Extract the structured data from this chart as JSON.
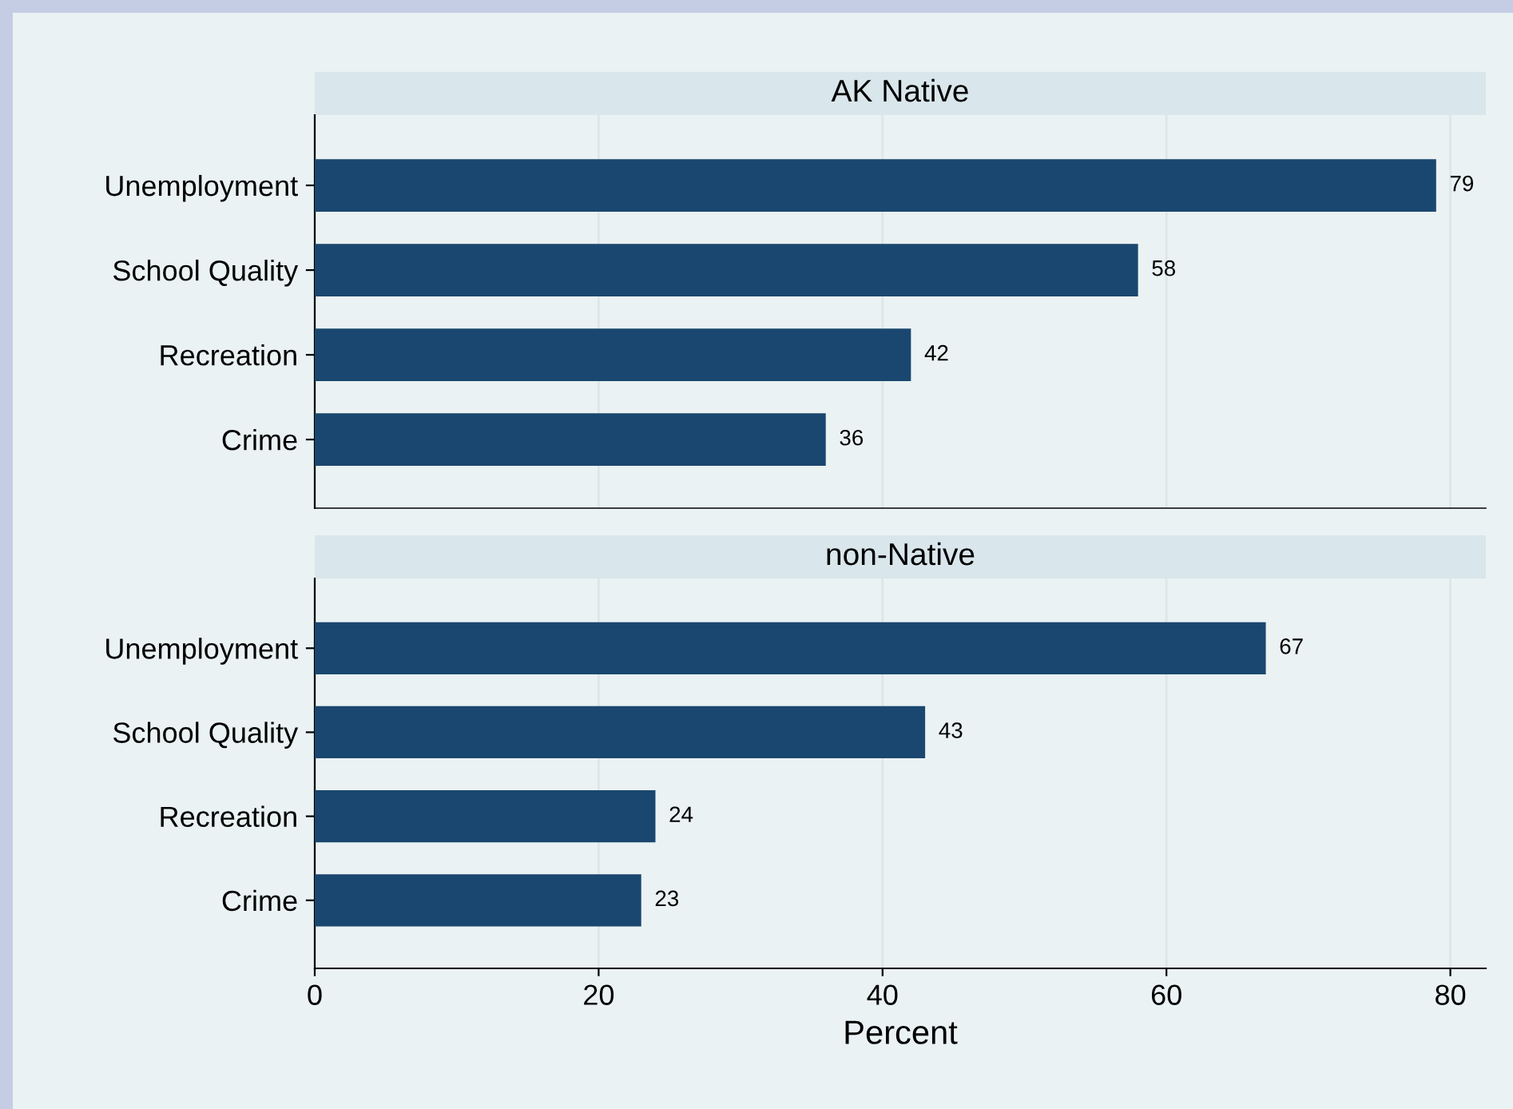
{
  "chart_data": [
    {
      "type": "bar",
      "orientation": "horizontal",
      "title": "AK Native",
      "categories": [
        "Unemployment",
        "School Quality",
        "Recreation",
        "Crime"
      ],
      "values": [
        79,
        58,
        42,
        36
      ],
      "color": "#1a476f",
      "xlim": [
        0,
        82.5
      ],
      "xticks": [
        0,
        20,
        40,
        60,
        80
      ],
      "grid": "x",
      "data_labels": true,
      "tick_labels": "y"
    },
    {
      "type": "bar",
      "orientation": "horizontal",
      "title": "non-Native",
      "categories": [
        "Unemployment",
        "School Quality",
        "Recreation",
        "Crime"
      ],
      "values": [
        67,
        43,
        24,
        23
      ],
      "color": "#1a476f",
      "xlim": [
        0,
        82.5
      ],
      "xticks": [
        0,
        20,
        40,
        60,
        80
      ],
      "xlabel": "Percent",
      "grid": "x",
      "data_labels": true
    }
  ]
}
